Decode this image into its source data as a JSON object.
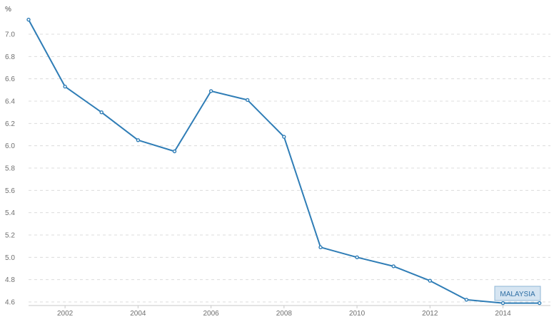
{
  "chart_data": {
    "type": "line",
    "ylabel": "%",
    "xlabel": "",
    "title": "",
    "xlim": [
      2001,
      2015.3
    ],
    "ylim": [
      4.6,
      7.1
    ],
    "x_ticks": [
      "2002",
      "2004",
      "2006",
      "2008",
      "2010",
      "2012",
      "2014"
    ],
    "y_ticks": [
      "4.6",
      "4.8",
      "5.0",
      "5.2",
      "5.4",
      "5.6",
      "5.8",
      "6.0",
      "6.2",
      "6.4",
      "6.6",
      "6.8",
      "7.0"
    ],
    "grid": true,
    "series": [
      {
        "name": "MALAYSIA",
        "color": "#2f7db6",
        "x": [
          2001,
          2002,
          2003,
          2004,
          2005,
          2006,
          2007,
          2008,
          2009,
          2010,
          2011,
          2012,
          2013,
          2014,
          2015
        ],
        "y": [
          7.13,
          6.53,
          6.3,
          6.05,
          5.95,
          6.49,
          6.41,
          6.08,
          5.09,
          5.0,
          4.92,
          4.79,
          4.62,
          4.59,
          4.59
        ]
      }
    ],
    "series_tag": {
      "text": "MALAYSIA",
      "background": "#d6e5f2",
      "border": "#8fb6d6",
      "text_color": "#2f6fa4"
    }
  }
}
